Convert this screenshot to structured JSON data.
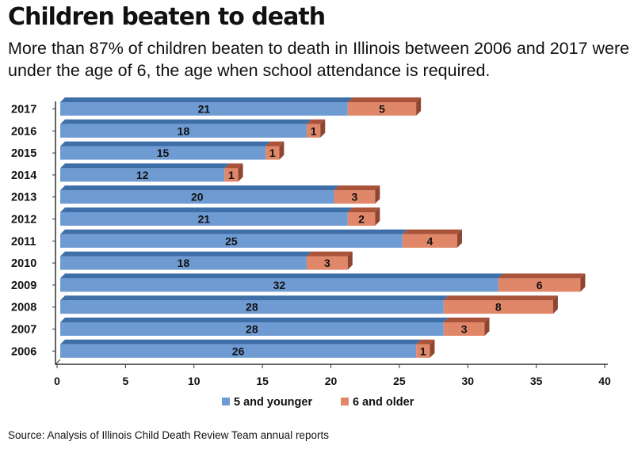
{
  "header": {
    "title": "Children beaten to death",
    "subtitle": "More than 87% of children beaten to death in Illinois between 2006 and 2017 were under the age of 6, the age when school attendance is required."
  },
  "footer": {
    "source": "Source: Analysis of Illinois Child Death Review Team annual reports"
  },
  "colors": {
    "series_a": "#6f9bd3",
    "series_a_top": "#3f6fa8",
    "series_a_side": "#4d77ad",
    "series_b": "#e0876a",
    "series_b_top": "#a9543a",
    "series_b_side": "#8f4530",
    "axis": "#333333"
  },
  "chart_data": {
    "type": "bar",
    "orientation": "horizontal",
    "stacked": true,
    "categories": [
      "2017",
      "2016",
      "2015",
      "2014",
      "2013",
      "2012",
      "2011",
      "2010",
      "2009",
      "2008",
      "2007",
      "2006"
    ],
    "series": [
      {
        "name": "5 and younger",
        "values": [
          21,
          18,
          15,
          12,
          20,
          21,
          25,
          18,
          32,
          28,
          28,
          26
        ]
      },
      {
        "name": "6 and older",
        "values": [
          5,
          1,
          1,
          1,
          3,
          2,
          4,
          3,
          6,
          8,
          3,
          1
        ]
      }
    ],
    "xlim": [
      0,
      40
    ],
    "xticks": [
      0,
      5,
      10,
      15,
      20,
      25,
      30,
      35,
      40
    ],
    "legend": "bottom-center",
    "grid": false
  }
}
